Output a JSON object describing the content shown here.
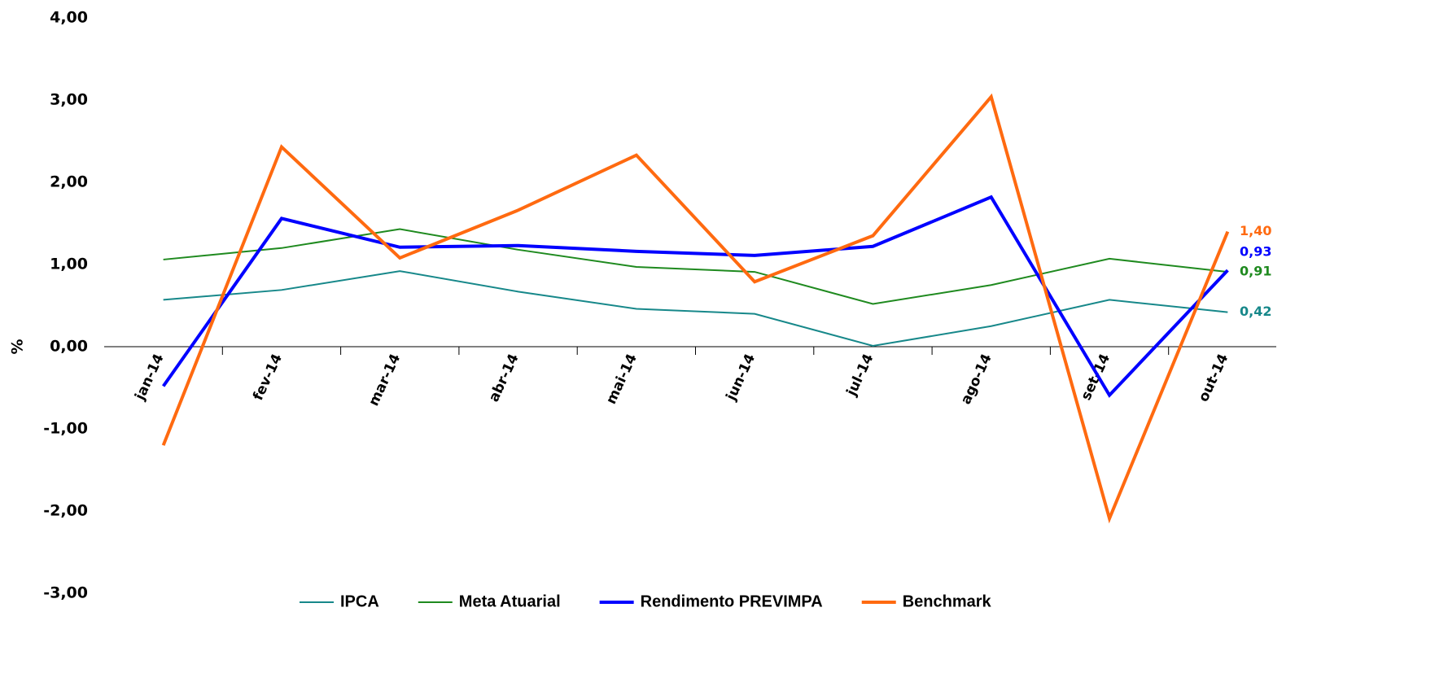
{
  "chart_data": {
    "type": "line",
    "y_label": "%",
    "categories": [
      "jan-14",
      "fev-14",
      "mar-14",
      "abr-14",
      "mai-14",
      "jun-14",
      "jul-14",
      "ago-14",
      "set-14",
      "out-14"
    ],
    "series": [
      {
        "name": "IPCA",
        "color": "#17888a",
        "width": 2,
        "values": [
          0.57,
          0.69,
          0.92,
          0.67,
          0.46,
          0.4,
          0.01,
          0.25,
          0.57,
          0.42
        ],
        "value_labels": [
          null,
          null,
          null,
          null,
          null,
          null,
          null,
          null,
          null,
          "0,42"
        ]
      },
      {
        "name": "Meta Atuarial",
        "color": "#1f8a1f",
        "width": 2,
        "values": [
          1.06,
          1.2,
          1.43,
          1.18,
          0.97,
          0.91,
          0.52,
          0.75,
          1.07,
          0.91
        ],
        "value_labels": [
          null,
          null,
          null,
          null,
          null,
          null,
          null,
          null,
          null,
          "0,91"
        ]
      },
      {
        "name": "Rendimento PREVIMPA",
        "color": "#0000ff",
        "width": 4,
        "values": [
          -0.48,
          1.56,
          1.21,
          1.23,
          1.16,
          1.11,
          1.22,
          1.82,
          -0.59,
          0.93
        ],
        "value_labels": [
          null,
          null,
          null,
          null,
          null,
          null,
          null,
          null,
          null,
          "0,93"
        ]
      },
      {
        "name": "Benchmark",
        "color": "#ff6a10",
        "width": 4,
        "values": [
          -1.2,
          2.43,
          1.08,
          1.66,
          2.33,
          0.79,
          1.35,
          3.04,
          -2.09,
          1.4
        ],
        "value_labels": [
          null,
          null,
          null,
          null,
          null,
          null,
          null,
          null,
          null,
          "1,40"
        ]
      }
    ],
    "ylim": [
      -3,
      4
    ],
    "yticks": [
      {
        "value": -3,
        "label": "-3,00"
      },
      {
        "value": -2,
        "label": "-2,00"
      },
      {
        "value": -1,
        "label": "-1,00"
      },
      {
        "value": 0,
        "label": "0,00"
      },
      {
        "value": 1,
        "label": "1,00"
      },
      {
        "value": 2,
        "label": "2,00"
      },
      {
        "value": 3,
        "label": "3,00"
      },
      {
        "value": 4,
        "label": "4,00"
      }
    ],
    "grid": false,
    "legend": "bottom"
  }
}
